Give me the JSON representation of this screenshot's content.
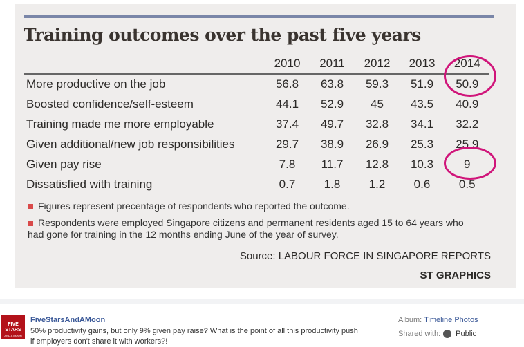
{
  "photo": {
    "title": "Training outcomes over the past five years",
    "columns": [
      "2010",
      "2011",
      "2012",
      "2013",
      "2014"
    ],
    "rows": [
      {
        "label": "More productive on the job",
        "values": [
          "56.8",
          "63.8",
          "59.3",
          "51.9",
          "50.9"
        ]
      },
      {
        "label": "Boosted confidence/self-esteem",
        "values": [
          "44.1",
          "52.9",
          "45",
          "43.5",
          "40.9"
        ]
      },
      {
        "label": "Training made me more employable",
        "values": [
          "37.4",
          "49.7",
          "32.8",
          "34.1",
          "32.2"
        ]
      },
      {
        "label": "Given additional/new job responsibilities",
        "values": [
          "29.7",
          "38.9",
          "26.9",
          "25.3",
          "25.9"
        ]
      },
      {
        "label": "Given pay rise",
        "values": [
          "7.8",
          "11.7",
          "12.8",
          "10.3",
          "9"
        ]
      },
      {
        "label": "Dissatisfied with training",
        "values": [
          "0.7",
          "1.8",
          "1.2",
          "0.6",
          "0.5"
        ]
      }
    ],
    "note1": "Figures represent precentage of respondents who reported the outcome.",
    "note2": "Respondents were employed Singapore citizens and permanent residents aged 15 to 64 years who had gone for training in the 12 months ending June of the year of survey.",
    "source": "Source: LABOUR FORCE IN SINGAPORE REPORTS",
    "credit": "ST GRAPHICS",
    "circle_color": "#d0157a"
  },
  "post": {
    "avatar_text": "FIVE STARS",
    "avatar_sub": "AND A MOON",
    "author": "FiveStarsAndAMoon",
    "message": "50% productivity gains, but only 9% given pay raise? What is the point of all this productivity push if employers don't share it with workers?!",
    "album_label": "Album:",
    "album_value": "Timeline Photos",
    "shared_label": "Shared with:",
    "shared_value": "Public",
    "shared_icon": "globe-icon"
  }
}
